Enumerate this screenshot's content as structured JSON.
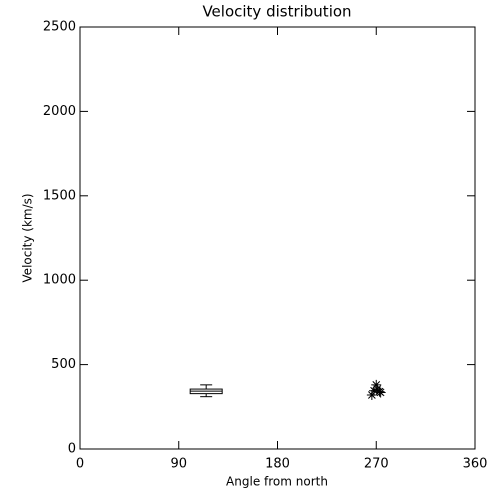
{
  "chart_data": {
    "type": "scatter",
    "title": "Velocity distribution",
    "x_label": "Angle from north",
    "y_label": "Velocity (km/s)",
    "xlim": [
      0,
      360
    ],
    "xticks": [
      0,
      90,
      180,
      270,
      360
    ],
    "ylim": [
      0,
      2500
    ],
    "yticks": [
      0,
      500,
      1000,
      1500,
      2000,
      2500
    ],
    "x": [
      266,
      270,
      273,
      268,
      271,
      274
    ],
    "values": [
      320,
      380,
      340,
      345,
      355,
      335
    ],
    "color": "#000000",
    "box": {
      "x": 115,
      "min": 310,
      "q1": 328,
      "median": 343,
      "q3": 355,
      "max": 380
    }
  }
}
